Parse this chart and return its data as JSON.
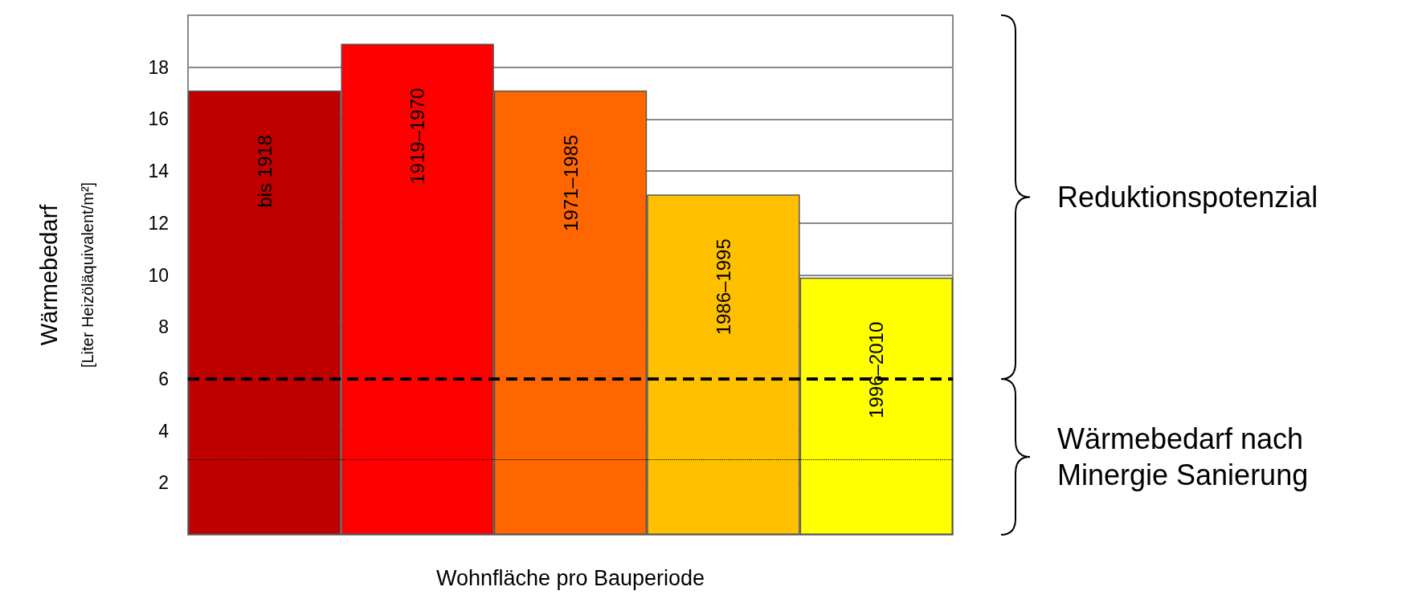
{
  "chart_data": {
    "type": "bar",
    "xlabel": "Wohnfläche pro Bauperiode",
    "ylabel": "Wärmebedarf\n[Liter Heizöläquivalent/m²]",
    "categories": [
      null,
      null,
      null,
      null,
      null
    ],
    "values": [
      17.1,
      18.9,
      17.1,
      13.1,
      9.9
    ],
    "colors": [
      "#c00000",
      "#ff0000",
      "#ff6600",
      "#ffc000",
      "#ffff00"
    ],
    "ylim": [
      0,
      20
    ],
    "yticks": [
      2,
      4,
      6,
      8,
      10,
      12,
      14,
      16,
      18
    ],
    "grid": "y",
    "ref_lines": [
      {
        "axis": "y",
        "value": 6,
        "line_style": "dashed",
        "color": "#000000"
      },
      {
        "axis": "y",
        "value": 2.9,
        "line_style": "dotted",
        "color": "#000000"
      }
    ],
    "annotations": [
      "bis 1918",
      "1919–1970",
      "1971–1985",
      "1986–1995",
      "1996–2010",
      "Reduktionspotenzial",
      "Wärmebedarf nach Minergie Sanierung"
    ]
  }
}
